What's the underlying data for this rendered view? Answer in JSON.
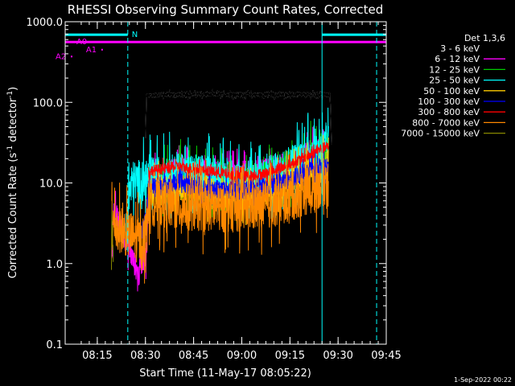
{
  "chart_data": {
    "type": "line",
    "title": "RHESSI Observing Summary Count Rates, Corrected",
    "xlabel": "Start Time (11-May-17 08:05:22)",
    "ylabel_main": "Corrected Count Rate (s",
    "ylabel_sup1": "-1",
    "ylabel_mid": " detector",
    "ylabel_sup2": "-1",
    "ylabel_end": ")",
    "yscale": "log",
    "ylim": [
      0.1,
      1000
    ],
    "xlim_minutes": [
      0,
      100
    ],
    "yticks": [
      {
        "value": 0.1,
        "label": "0.1"
      },
      {
        "value": 1,
        "label": "1.0"
      },
      {
        "value": 10,
        "label": "10.0"
      },
      {
        "value": 100,
        "label": "100.0"
      },
      {
        "value": 1000,
        "label": "1000.0"
      }
    ],
    "xticks": [
      {
        "minute": 10,
        "label": "08:15"
      },
      {
        "minute": 25,
        "label": "08:30"
      },
      {
        "minute": 40,
        "label": "08:45"
      },
      {
        "minute": 55,
        "label": "09:00"
      },
      {
        "minute": 70,
        "label": "09:15"
      },
      {
        "minute": 85,
        "label": "09:30"
      },
      {
        "minute": 100,
        "label": "09:45"
      }
    ],
    "legend": {
      "title": "Det 1,3,6",
      "placement": "right",
      "items": [
        {
          "label": "3 - 6 keV",
          "color": "#000000"
        },
        {
          "label": "6 - 12 keV",
          "color": "#ff00ff"
        },
        {
          "label": "12 - 25 keV",
          "color": "#00cc00"
        },
        {
          "label": "25 - 50 keV",
          "color": "#00ffff"
        },
        {
          "label": "50 - 100 keV",
          "color": "#ffcc00"
        },
        {
          "label": "100 - 300 keV",
          "color": "#0000ff"
        },
        {
          "label": "300 - 800 keV",
          "color": "#ff0000"
        },
        {
          "label": "800 - 7000 keV",
          "color": "#ff8800"
        },
        {
          "label": "7000 - 15000 keV",
          "color": "#888800"
        }
      ]
    },
    "series": [
      {
        "name": "3 - 6 keV",
        "color": "#000000",
        "noise": 0.03,
        "points": [
          [
            25,
            35
          ],
          [
            25.3,
            120
          ],
          [
            30,
            125
          ],
          [
            50,
            125
          ],
          [
            70,
            124
          ],
          [
            82,
            124
          ],
          [
            82.5,
            120
          ],
          [
            83,
            28
          ]
        ]
      },
      {
        "name": "6 - 12 keV",
        "color": "#ff00ff",
        "noise": 0.15,
        "points": [
          [
            14.5,
            0.9
          ],
          [
            14.5,
            1.5
          ],
          [
            15,
            5
          ],
          [
            23,
            0.7
          ],
          [
            23.5,
            1.0
          ],
          [
            25,
            1.2
          ],
          [
            25.5,
            1.5
          ],
          [
            26,
            12
          ],
          [
            35,
            15
          ],
          [
            50,
            13
          ],
          [
            60,
            14
          ],
          [
            70,
            18
          ],
          [
            75,
            23
          ],
          [
            80,
            28
          ],
          [
            81,
            26
          ]
        ]
      },
      {
        "name": "12 - 25 keV",
        "color": "#00cc00",
        "noise": 0.25,
        "points": [
          [
            26,
            10
          ],
          [
            35,
            12
          ],
          [
            45,
            10
          ],
          [
            55,
            9
          ],
          [
            62,
            11
          ],
          [
            70,
            15
          ],
          [
            78,
            22
          ],
          [
            82,
            26
          ]
        ]
      },
      {
        "name": "25 - 50 keV",
        "color": "#00ffff",
        "noise": 0.28,
        "points": [
          [
            19,
            2
          ],
          [
            20,
            8
          ],
          [
            21,
            10
          ],
          [
            26,
            11
          ],
          [
            35,
            13
          ],
          [
            50,
            11
          ],
          [
            58,
            10
          ],
          [
            65,
            12
          ],
          [
            72,
            18
          ],
          [
            78,
            25
          ],
          [
            82,
            28
          ]
        ]
      },
      {
        "name": "50 - 100 keV",
        "color": "#ffcc00",
        "noise": 0.2,
        "points": [
          [
            26,
            8
          ],
          [
            40,
            8
          ],
          [
            55,
            7
          ],
          [
            65,
            8
          ],
          [
            75,
            13
          ],
          [
            82,
            17
          ]
        ]
      },
      {
        "name": "100 - 300 keV",
        "color": "#0000ff",
        "noise": 0.12,
        "points": [
          [
            24,
            2.5
          ],
          [
            25,
            3.5
          ],
          [
            26,
            9
          ],
          [
            35,
            10
          ],
          [
            45,
            8.5
          ],
          [
            55,
            8
          ],
          [
            62,
            9
          ],
          [
            70,
            11
          ],
          [
            78,
            15
          ],
          [
            82,
            17
          ]
        ]
      },
      {
        "name": "300 - 800 keV",
        "color": "#ff0000",
        "noise": 0.07,
        "points": [
          [
            26,
            14
          ],
          [
            35,
            16
          ],
          [
            45,
            14
          ],
          [
            55,
            12
          ],
          [
            62,
            13
          ],
          [
            70,
            17
          ],
          [
            76,
            22
          ],
          [
            80,
            27
          ],
          [
            82,
            28
          ]
        ]
      },
      {
        "name": "800 - 7000 keV",
        "color": "#ff8800",
        "noise": 0.3,
        "points": [
          [
            14.5,
            1.2
          ],
          [
            14.5,
            6
          ],
          [
            15,
            3
          ],
          [
            24.5,
            1.8
          ],
          [
            25.5,
            4
          ],
          [
            26,
            6
          ],
          [
            35,
            5
          ],
          [
            40,
            5
          ],
          [
            50,
            4.8
          ],
          [
            60,
            5
          ],
          [
            65,
            5.5
          ],
          [
            72,
            7
          ],
          [
            78,
            9
          ],
          [
            82,
            11
          ]
        ]
      },
      {
        "name": "7000 - 15000 keV",
        "color": "#888800",
        "noise": 0.1,
        "points": [
          [
            14.4,
            0.95
          ],
          [
            14.5,
            4
          ],
          [
            15,
            1.1
          ]
        ]
      }
    ],
    "flags": {
      "a0": {
        "label": "A0",
        "value": 560,
        "x_start_minute": 0,
        "x_end_minute": 100,
        "color": "#ff00ff"
      },
      "a1": {
        "label": "A1",
        "value": 450,
        "x_minute": 11.5,
        "color": "#ff00ff"
      },
      "a2": {
        "label": "A2",
        "value": 370,
        "x_minute": 2,
        "color": "#ff00ff"
      },
      "night": {
        "label": "N",
        "value": 690,
        "color": "#00ffff",
        "segments": [
          [
            0,
            19.5
          ],
          [
            80,
            100
          ]
        ]
      }
    },
    "vertical_lines": [
      {
        "minute": 0,
        "style": "solid",
        "color": "#00ffff"
      },
      {
        "minute": 19.5,
        "style": "dashed",
        "color": "#00ffff"
      },
      {
        "minute": 80,
        "style": "solid",
        "color": "#00ffff"
      },
      {
        "minute": 97,
        "style": "dashed",
        "color": "#00ffff"
      }
    ],
    "footer": "1-Sep-2022 00:22"
  }
}
